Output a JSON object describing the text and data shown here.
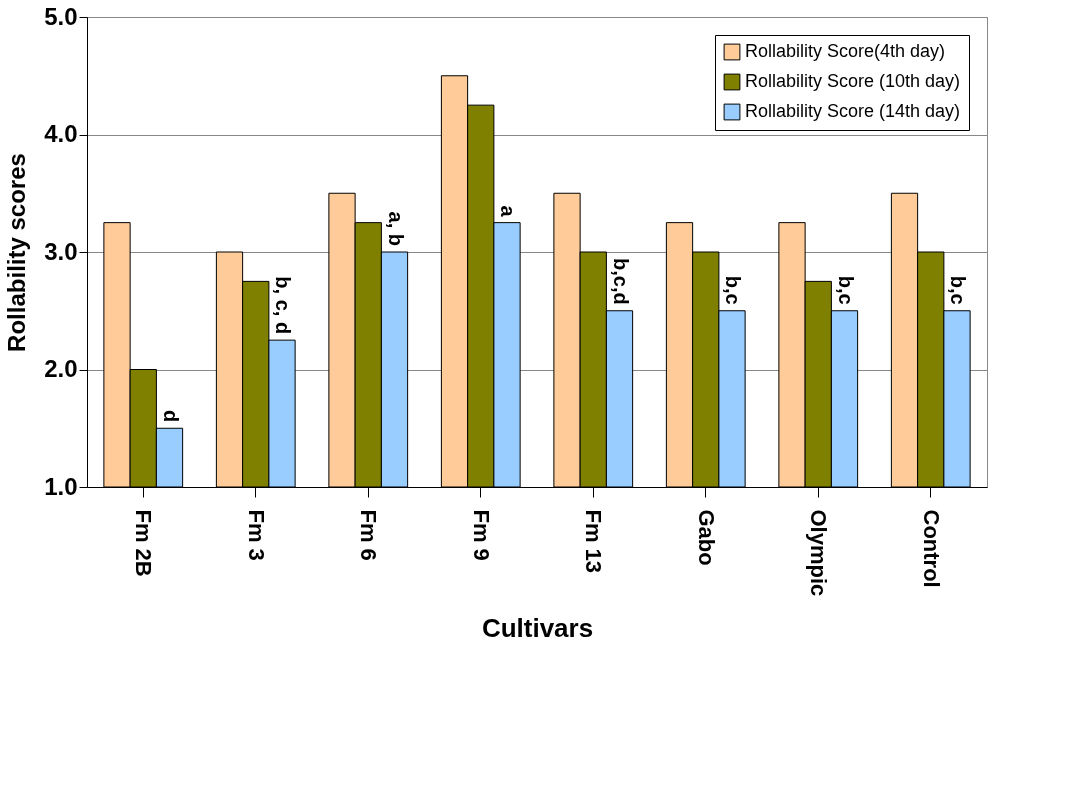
{
  "chart_data": {
    "type": "bar",
    "xlabel": "Cultivars",
    "ylabel": "Rollability scores",
    "categories": [
      "Fm 2B",
      "Fm 3",
      "Fm 6",
      "Fm 9",
      "Fm 13",
      "Gabo",
      "Olympic",
      "Control"
    ],
    "series": [
      {
        "name": "Rollability Score(4th day)",
        "color": "#ffcc99",
        "values": [
          3.25,
          3.0,
          3.5,
          4.5,
          3.5,
          3.25,
          3.25,
          3.5
        ]
      },
      {
        "name": "Rollability Score (10th day)",
        "color": "#808000",
        "values": [
          2.0,
          2.75,
          3.25,
          4.25,
          3.0,
          3.0,
          2.75,
          3.0
        ]
      },
      {
        "name": "Rollability Score (14th day)",
        "color": "#99ccff",
        "values": [
          1.5,
          2.25,
          3.0,
          3.25,
          2.5,
          2.5,
          2.5,
          2.5
        ]
      }
    ],
    "ylim": [
      1,
      5
    ],
    "yticks": [
      {
        "value": 1,
        "label": "1.0"
      },
      {
        "value": 2,
        "label": "2.0"
      },
      {
        "value": 3,
        "label": "3.0"
      },
      {
        "value": 4,
        "label": "4.0"
      },
      {
        "value": 5,
        "label": "5.0"
      }
    ],
    "grid": "y",
    "legend": "top right",
    "annotations": [
      "d",
      "b, c, d",
      "a, b",
      "a",
      "b,c,d",
      "b,c",
      "b,c",
      "b,c"
    ]
  }
}
